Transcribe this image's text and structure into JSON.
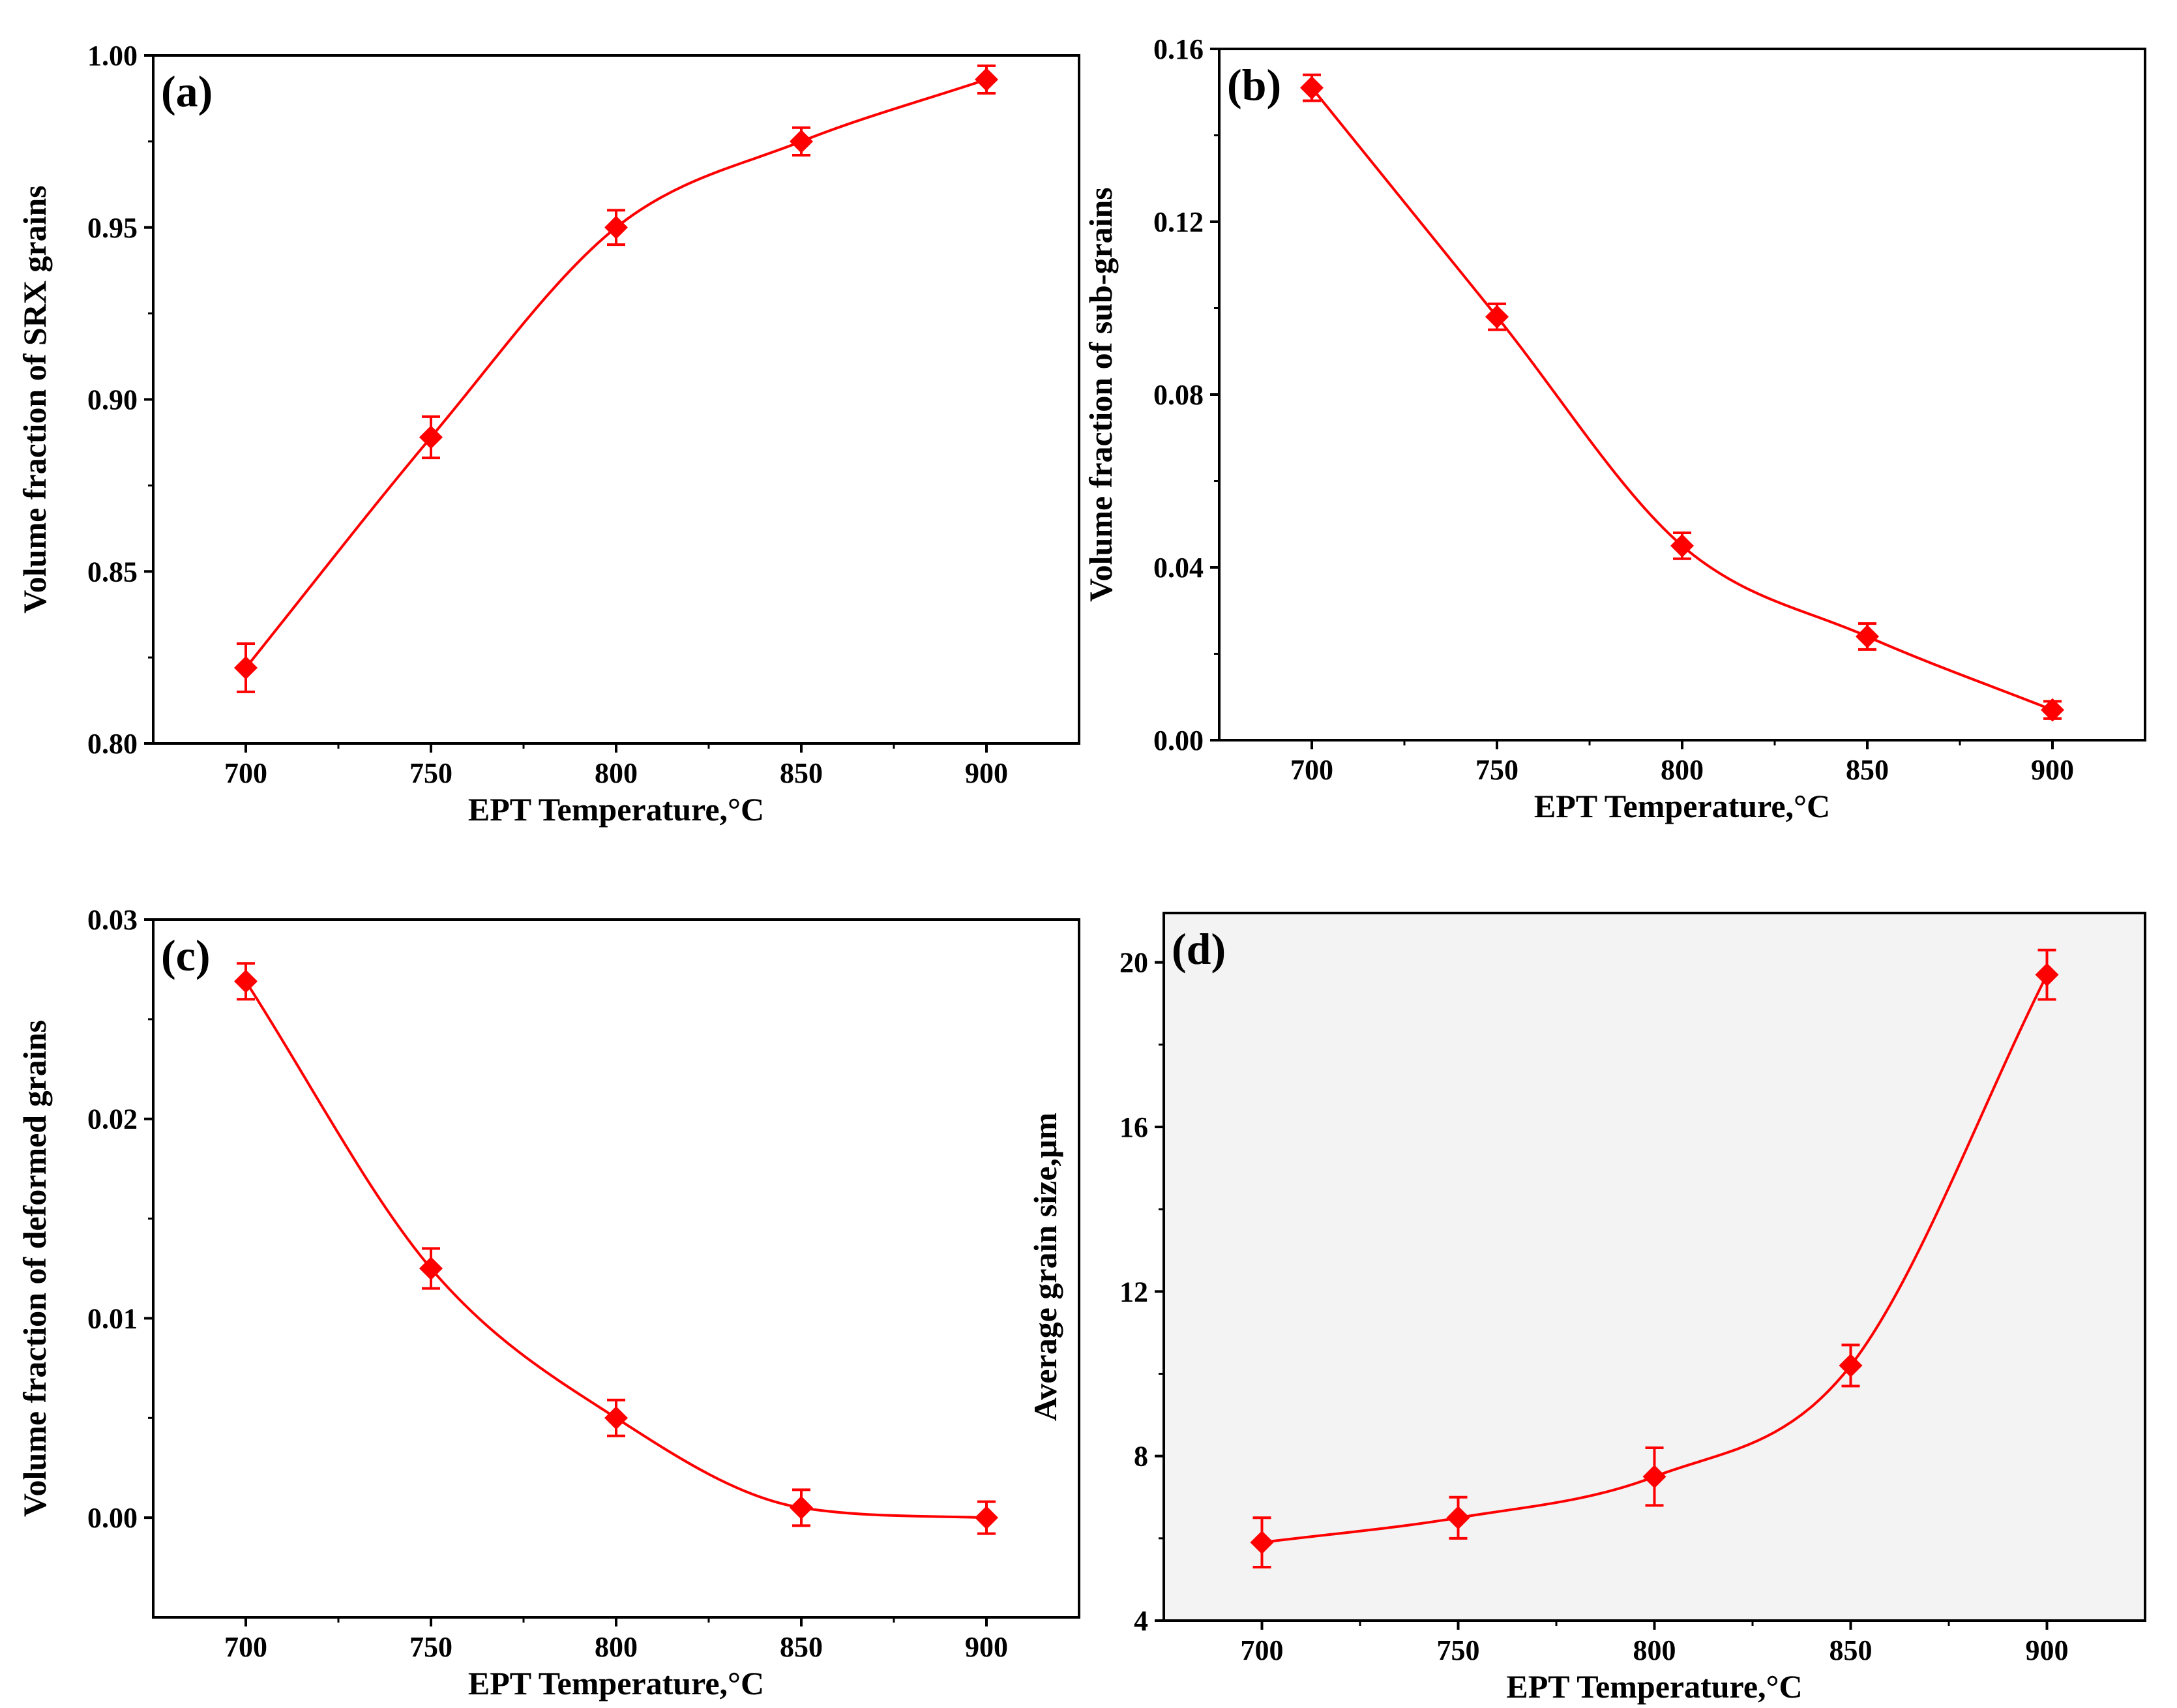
{
  "figure": {
    "series_color": "#ff0000",
    "axis_color": "#000000",
    "panel_d_background": "#f3f3f3"
  },
  "chart_data": [
    {
      "type": "line",
      "panel": "(a)",
      "xlabel": "EPT Temperature,°C",
      "ylabel": "Volume fraction of SRX grains",
      "x": [
        700,
        750,
        800,
        850,
        900
      ],
      "y": [
        0.822,
        0.889,
        0.95,
        0.975,
        0.993
      ],
      "yerr": [
        0.007,
        0.006,
        0.005,
        0.004,
        0.004
      ],
      "xlim": [
        675,
        925
      ],
      "ylim": [
        0.8,
        1.0
      ],
      "xticks": [
        700,
        750,
        800,
        850,
        900
      ],
      "xtick_labels": [
        "700",
        "750",
        "800",
        "850",
        "900"
      ],
      "yticks": [
        0.8,
        0.85,
        0.9,
        0.95,
        1.0
      ],
      "ytick_labels": [
        "0.80",
        "0.85",
        "0.90",
        "0.95",
        "1.00"
      ],
      "marker": "diamond",
      "smooth_line": true
    },
    {
      "type": "line",
      "panel": "(b)",
      "xlabel": "EPT Temperature,°C",
      "ylabel": "Volume fraction of sub-grains",
      "x": [
        700,
        750,
        800,
        850,
        900
      ],
      "y": [
        0.151,
        0.098,
        0.045,
        0.024,
        0.007
      ],
      "yerr": [
        0.003,
        0.003,
        0.003,
        0.003,
        0.002
      ],
      "xlim": [
        675,
        925
      ],
      "ylim": [
        0.0,
        0.16
      ],
      "xticks": [
        700,
        750,
        800,
        850,
        900
      ],
      "xtick_labels": [
        "700",
        "750",
        "800",
        "850",
        "900"
      ],
      "yticks": [
        0.0,
        0.04,
        0.08,
        0.12,
        0.16
      ],
      "ytick_labels": [
        "0.00",
        "0.04",
        "0.08",
        "0.12",
        "0.16"
      ],
      "marker": "diamond",
      "smooth_line": true
    },
    {
      "type": "line",
      "panel": "(c)",
      "xlabel": "EPT Temperature,°C",
      "ylabel": "Volume fraction of deformed grains",
      "x": [
        700,
        750,
        800,
        850,
        900
      ],
      "y": [
        0.0269,
        0.0125,
        0.005,
        0.0005,
        0.0
      ],
      "yerr": [
        0.0009,
        0.001,
        0.0009,
        0.0009,
        0.0008
      ],
      "xlim": [
        675,
        925
      ],
      "ylim": [
        -0.005,
        0.03
      ],
      "xticks": [
        700,
        750,
        800,
        850,
        900
      ],
      "xtick_labels": [
        "700",
        "750",
        "800",
        "850",
        "900"
      ],
      "yticks": [
        0.0,
        0.01,
        0.02,
        0.03
      ],
      "ytick_labels": [
        "0.00",
        "0.01",
        "0.02",
        "0.03"
      ],
      "marker": "diamond",
      "smooth_line": true
    },
    {
      "type": "line",
      "panel": "(d)",
      "xlabel": "EPT Temperature,°C",
      "ylabel": "Average grain size,μm",
      "x": [
        700,
        750,
        800,
        850,
        900
      ],
      "y": [
        5.9,
        6.5,
        7.5,
        10.2,
        19.7
      ],
      "yerr": [
        0.6,
        0.5,
        0.7,
        0.5,
        0.6
      ],
      "xlim": [
        675,
        925
      ],
      "ylim": [
        4,
        21.2
      ],
      "xticks": [
        700,
        750,
        800,
        850,
        900
      ],
      "xtick_labels": [
        "700",
        "750",
        "800",
        "850",
        "900"
      ],
      "yticks": [
        4,
        8,
        12,
        16,
        20
      ],
      "ytick_labels": [
        "4",
        "8",
        "12",
        "16",
        "20"
      ],
      "marker": "diamond",
      "smooth_line": true
    }
  ]
}
